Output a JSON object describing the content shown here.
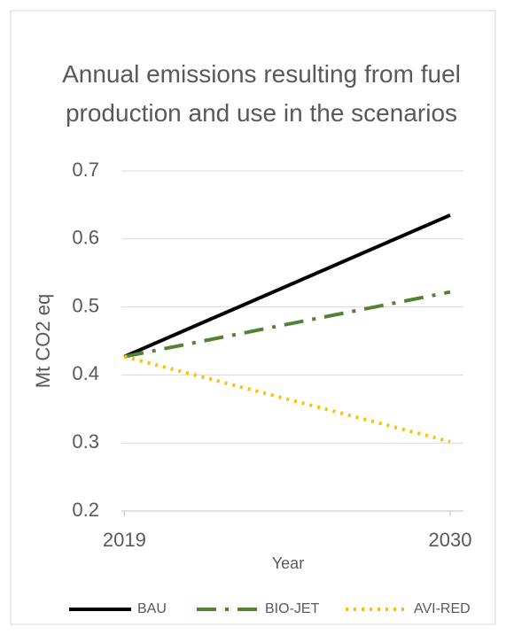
{
  "chart_data": {
    "type": "line",
    "title": "Annual emissions resulting from fuel production and use in the scenarios",
    "x_label": "Year",
    "y_label": "Mt CO2 eq",
    "x": [
      2019,
      2030
    ],
    "xlim": [
      2018.9,
      2030.45
    ],
    "xticks": [
      2019,
      2030
    ],
    "ylim": [
      0.2,
      0.7
    ],
    "yticks": [
      0.2,
      0.3,
      0.4,
      0.5,
      0.6,
      0.7
    ],
    "grid": true,
    "legend": "bottom",
    "series": [
      {
        "name": "BAU",
        "color": "#000000",
        "dash": "solid",
        "values": [
          0.427,
          0.635
        ]
      },
      {
        "name": "BIO-JET",
        "color": "#548235",
        "dash": "dashdot",
        "values": [
          0.427,
          0.522
        ]
      },
      {
        "name": "AVI-RED",
        "color": "#ffc000",
        "dash": "dot",
        "values": [
          0.427,
          0.302
        ]
      }
    ]
  }
}
